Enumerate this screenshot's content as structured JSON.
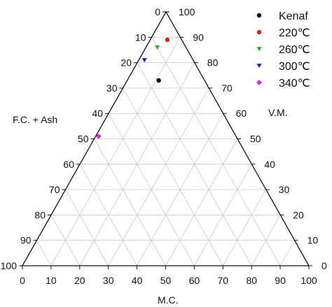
{
  "chart_data": {
    "type": "scatter",
    "subtype": "ternary",
    "axes": {
      "left": {
        "label": "F.C. + Ash",
        "range": [
          0,
          100
        ]
      },
      "right": {
        "label": "V.M.",
        "range": [
          0,
          100
        ]
      },
      "bottom": {
        "label": "M.C.",
        "range": [
          0,
          100
        ]
      }
    },
    "ticks": [
      "0",
      "10",
      "20",
      "30",
      "40",
      "50",
      "60",
      "70",
      "80",
      "90",
      "100"
    ],
    "grid": true,
    "grid_step": 10,
    "legend_position": "top-right",
    "series": [
      {
        "name": "Kenaf",
        "marker": "circle",
        "color": "#000000",
        "points": [
          {
            "vm": 73,
            "mc": 11,
            "fc_ash": 16
          }
        ]
      },
      {
        "name": "220℃",
        "marker": "circle",
        "color": "#d62020",
        "points": [
          {
            "vm": 89,
            "mc": 6,
            "fc_ash": 5
          }
        ]
      },
      {
        "name": "260℃",
        "marker": "triangle-down",
        "color": "#22b022",
        "points": [
          {
            "vm": 86,
            "mc": 4,
            "fc_ash": 10
          }
        ]
      },
      {
        "name": "300℃",
        "marker": "triangle-down",
        "color": "#1a1acc",
        "points": [
          {
            "vm": 81,
            "mc": 2,
            "fc_ash": 17
          }
        ]
      },
      {
        "name": "340℃",
        "marker": "diamond",
        "color": "#dd22dd",
        "points": [
          {
            "vm": 51,
            "mc": 1,
            "fc_ash": 48
          }
        ]
      }
    ]
  }
}
